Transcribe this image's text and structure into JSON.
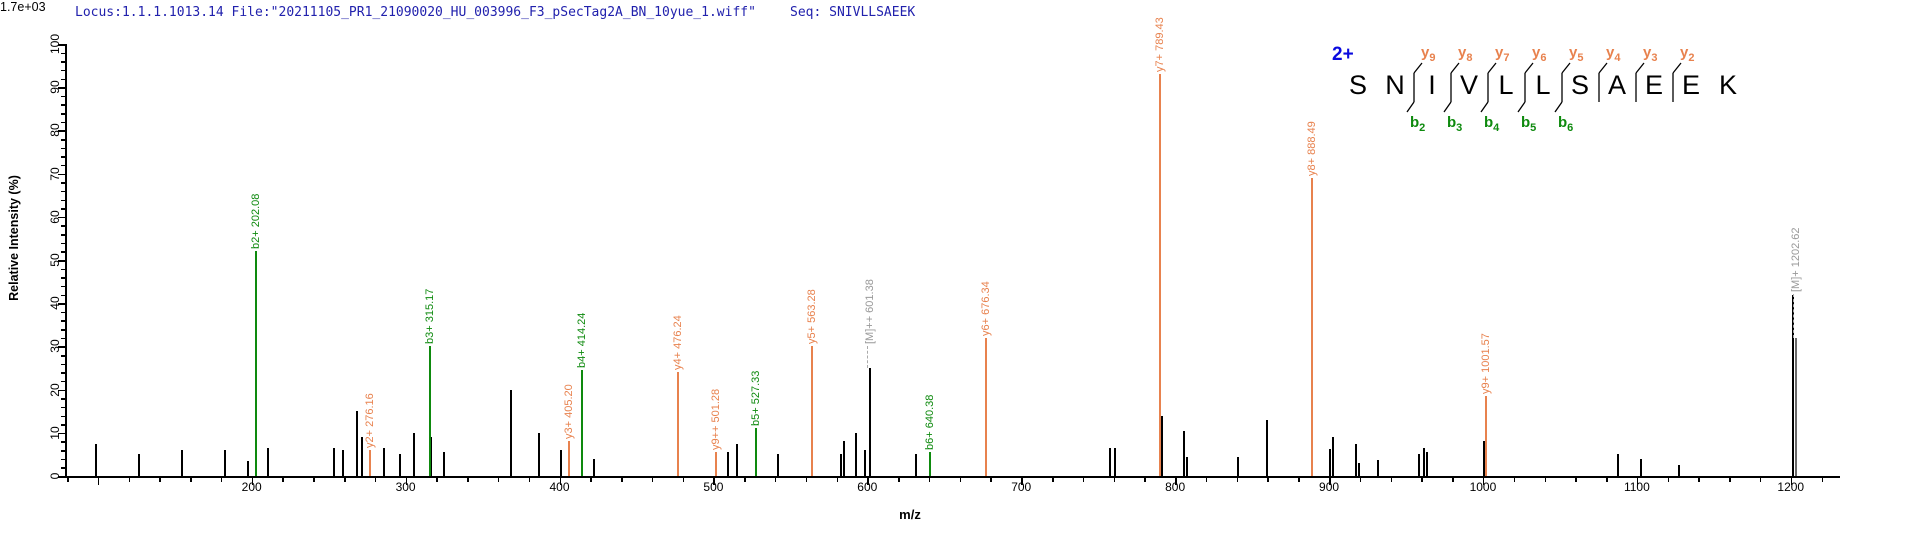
{
  "header": {
    "locus_text": "Locus:1.1.1.1013.14 File:\"20211105_PR1_21090020_HU_003996_F3_pSecTag2A_BN_10yue_1.wiff\"",
    "seq_text": "Seq: SNIVLLSAEEK"
  },
  "colors": {
    "header_blue": "#2121AD",
    "charge_blue": "#0A0ADF",
    "y_ion": "#E8824E",
    "b_ion": "#0E8A0E",
    "precursor": "#999999",
    "peak_black": "#000000"
  },
  "sequence_panel": {
    "charge": "2+",
    "peptide": "SNIVLLSAEEK",
    "residues": [
      {
        "letter": "S"
      },
      {
        "letter": "N"
      },
      {
        "letter": "I",
        "y": "y9",
        "b": "b2"
      },
      {
        "letter": "V",
        "y": "y8",
        "b": "b3"
      },
      {
        "letter": "L",
        "y": "y7",
        "b": "b4"
      },
      {
        "letter": "L",
        "y": "y6",
        "b": "b5"
      },
      {
        "letter": "S",
        "y": "y5",
        "b": "b6"
      },
      {
        "letter": "A",
        "y": "y4"
      },
      {
        "letter": "E",
        "y": "y3"
      },
      {
        "letter": "E",
        "y": "y2"
      },
      {
        "letter": "K"
      }
    ]
  },
  "chart_data": {
    "type": "bar",
    "subtype": "ms2-fragmentation-spectrum",
    "title": "",
    "xlabel": "m/z",
    "ylabel": "Relative Intensity (%)",
    "intensity_scale_max": "1.7e+03",
    "xlim": [
      80,
      1232
    ],
    "ylim": [
      0,
      100
    ],
    "x_label_ticks": [
      200,
      300,
      400,
      500,
      600,
      700,
      800,
      900,
      1000,
      1100,
      1200
    ],
    "x_minor_step": 20,
    "y_label_ticks": [
      0,
      10,
      20,
      30,
      40,
      50,
      60,
      70,
      80,
      90,
      100
    ],
    "y_minor_step": 2,
    "grid": false,
    "legend": "none",
    "annotated_peaks": [
      {
        "label": "b2+ 202.08",
        "ion": "b2",
        "mz": 202.08,
        "pct": 52,
        "kind": "b"
      },
      {
        "label": "y2+ 276.16",
        "ion": "y2",
        "mz": 276.16,
        "pct": 6,
        "kind": "y"
      },
      {
        "label": "b3+ 315.17",
        "ion": "b3",
        "mz": 315.17,
        "pct": 30,
        "kind": "b"
      },
      {
        "label": "y3+ 405.20",
        "ion": "y3",
        "mz": 405.2,
        "pct": 8,
        "kind": "y"
      },
      {
        "label": "b4+ 414.24",
        "ion": "b4",
        "mz": 414.24,
        "pct": 24.5,
        "kind": "b"
      },
      {
        "label": "y4+ 476.24",
        "ion": "y4",
        "mz": 476.24,
        "pct": 24,
        "kind": "y"
      },
      {
        "label": "y9++ 501.28",
        "ion": "y9++",
        "mz": 501.28,
        "pct": 5.5,
        "kind": "y"
      },
      {
        "label": "b5+ 527.33",
        "ion": "b5",
        "mz": 527.33,
        "pct": 11,
        "kind": "b"
      },
      {
        "label": "y5+ 563.28",
        "ion": "y5",
        "mz": 563.28,
        "pct": 30,
        "kind": "y"
      },
      {
        "label": "[M]++ 601.38",
        "ion": "M2+",
        "mz": 601.38,
        "pct": 25,
        "kind": "M",
        "pointer": 22
      },
      {
        "label": "b6+ 640.38",
        "ion": "b6",
        "mz": 640.38,
        "pct": 5.5,
        "kind": "b"
      },
      {
        "label": "y6+ 676.34",
        "ion": "y6",
        "mz": 676.34,
        "pct": 32,
        "kind": "y"
      },
      {
        "label": "y7+ 789.43",
        "ion": "y7",
        "mz": 789.43,
        "pct": 93,
        "kind": "y"
      },
      {
        "label": "y8+ 888.49",
        "ion": "y8",
        "mz": 888.49,
        "pct": 69,
        "kind": "y"
      },
      {
        "label": "y9+ 1001.57",
        "ion": "y9",
        "mz": 1001.57,
        "pct": 18.5,
        "kind": "y"
      },
      {
        "label": "[M]+ 1202.62",
        "ion": "M+",
        "mz": 1202.62,
        "pct": 32,
        "kind": "M",
        "pointer": 44,
        "gray_bar": true
      }
    ],
    "unannotated_peaks": [
      [
        98,
        7.5
      ],
      [
        126,
        5
      ],
      [
        154,
        6
      ],
      [
        182,
        6
      ],
      [
        197,
        3.5
      ],
      [
        210,
        6.5
      ],
      [
        253,
        6.5
      ],
      [
        259,
        6
      ],
      [
        268,
        15
      ],
      [
        271,
        9
      ],
      [
        285,
        6.5
      ],
      [
        296,
        5
      ],
      [
        305,
        10
      ],
      [
        316,
        9
      ],
      [
        324,
        5.5
      ],
      [
        368,
        20
      ],
      [
        386,
        10
      ],
      [
        400,
        6
      ],
      [
        422,
        4
      ],
      [
        509,
        5.5
      ],
      [
        515,
        7.5
      ],
      [
        541,
        5
      ],
      [
        582,
        5
      ],
      [
        584,
        8
      ],
      [
        592,
        10
      ],
      [
        598,
        6
      ],
      [
        631,
        5
      ],
      [
        757,
        6.5
      ],
      [
        760,
        6.5
      ],
      [
        791,
        14
      ],
      [
        805,
        10.5
      ],
      [
        807,
        4.5
      ],
      [
        840,
        4.5
      ],
      [
        859,
        13
      ],
      [
        900,
        6.3
      ],
      [
        902,
        9
      ],
      [
        917,
        7.5
      ],
      [
        919,
        3
      ],
      [
        931,
        3.7
      ],
      [
        958,
        5
      ],
      [
        961,
        6.5
      ],
      [
        963,
        5.5
      ],
      [
        1000,
        8
      ],
      [
        1087,
        5
      ],
      [
        1102,
        4
      ],
      [
        1127,
        2.6
      ],
      [
        1200.5,
        42
      ]
    ]
  }
}
